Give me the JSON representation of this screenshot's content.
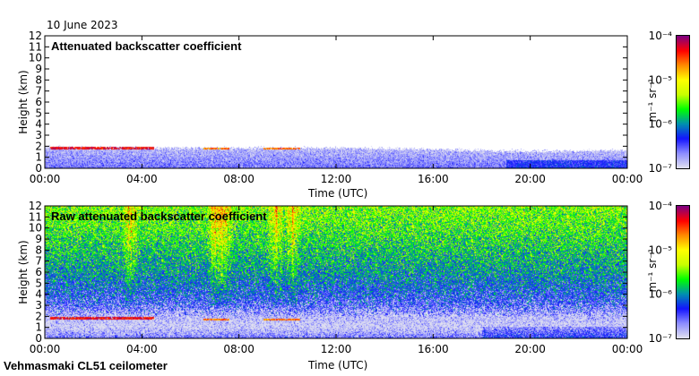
{
  "date_label": "10 June 2023",
  "instrument_label": "Vehmasmaki CL51 ceilometer",
  "chart_data": [
    {
      "type": "heatmap",
      "title": "Attenuated backscatter coefficient",
      "xlabel": "Time (UTC)",
      "ylabel": "Height (km)",
      "xlim": [
        0,
        24
      ],
      "ylim": [
        0,
        12
      ],
      "xticks": [
        "00:00",
        "04:00",
        "08:00",
        "12:00",
        "16:00",
        "20:00",
        "00:00"
      ],
      "yticks": [
        "0",
        "1",
        "2",
        "3",
        "4",
        "5",
        "6",
        "7",
        "8",
        "9",
        "10",
        "11",
        "12"
      ],
      "value_scale": "log10",
      "value_range": [
        -7,
        -4
      ],
      "boundary_layer_top_km": {
        "hours": [
          0,
          4,
          8,
          12,
          16,
          20,
          24
        ],
        "heights": [
          1.9,
          1.8,
          1.8,
          1.8,
          1.7,
          1.5,
          1.6
        ]
      },
      "cloud_layers": [
        {
          "start_h": 0.2,
          "end_h": 4.5,
          "height_km": 1.8,
          "log10_value": -4.3
        },
        {
          "start_h": 6.5,
          "end_h": 7.6,
          "height_km": 1.75,
          "log10_value": -4.6
        },
        {
          "start_h": 9.0,
          "end_h": 10.5,
          "height_km": 1.75,
          "log10_value": -4.6
        }
      ],
      "profile_log10": {
        "heights_km": [
          0,
          0.5,
          1,
          1.5,
          2,
          3,
          6,
          12
        ],
        "values": [
          -6.5,
          -6.7,
          -6.8,
          -6.9,
          -7.2,
          -9,
          -9,
          -9
        ]
      }
    },
    {
      "type": "heatmap",
      "title": "Raw attenuated backscatter coefficient",
      "xlabel": "Time (UTC)",
      "ylabel": "Height (km)",
      "xlim": [
        0,
        24
      ],
      "ylim": [
        0,
        12
      ],
      "xticks": [
        "00:00",
        "04:00",
        "08:00",
        "12:00",
        "16:00",
        "20:00",
        "00:00"
      ],
      "yticks": [
        "0",
        "1",
        "2",
        "3",
        "4",
        "5",
        "6",
        "7",
        "8",
        "9",
        "10",
        "11",
        "12"
      ],
      "value_scale": "log10",
      "value_range": [
        -7,
        -4
      ],
      "cloud_layers": [
        {
          "start_h": 0.2,
          "end_h": 4.5,
          "height_km": 1.8,
          "log10_value": -4.3
        },
        {
          "start_h": 6.5,
          "end_h": 7.6,
          "height_km": 1.7,
          "log10_value": -4.6
        },
        {
          "start_h": 9.0,
          "end_h": 10.5,
          "height_km": 1.7,
          "log10_value": -4.6
        }
      ],
      "profile_log10": {
        "heights_km": [
          0,
          0.5,
          1,
          2,
          3,
          4,
          6,
          8,
          10,
          12
        ],
        "values": [
          -6.6,
          -6.8,
          -6.95,
          -6.85,
          -6.5,
          -6.3,
          -6.0,
          -5.8,
          -5.6,
          -5.45
        ]
      },
      "noise_stripes_h": [
        3.5,
        7.0,
        7.4,
        9.5,
        10.2
      ]
    }
  ],
  "colorbar": {
    "label": "m⁻¹ sr⁻¹",
    "ticks": [
      "10⁻⁷",
      "10⁻⁶",
      "10⁻⁵",
      "10⁻⁴"
    ],
    "tick_values": [
      -7,
      -6,
      -5,
      -4
    ],
    "colors": [
      "#e0e0f0",
      "#8c8cff",
      "#1414ff",
      "#0090b0",
      "#00ff00",
      "#c8ff00",
      "#ffff00",
      "#ff8c00",
      "#ff0000",
      "#800080"
    ]
  }
}
